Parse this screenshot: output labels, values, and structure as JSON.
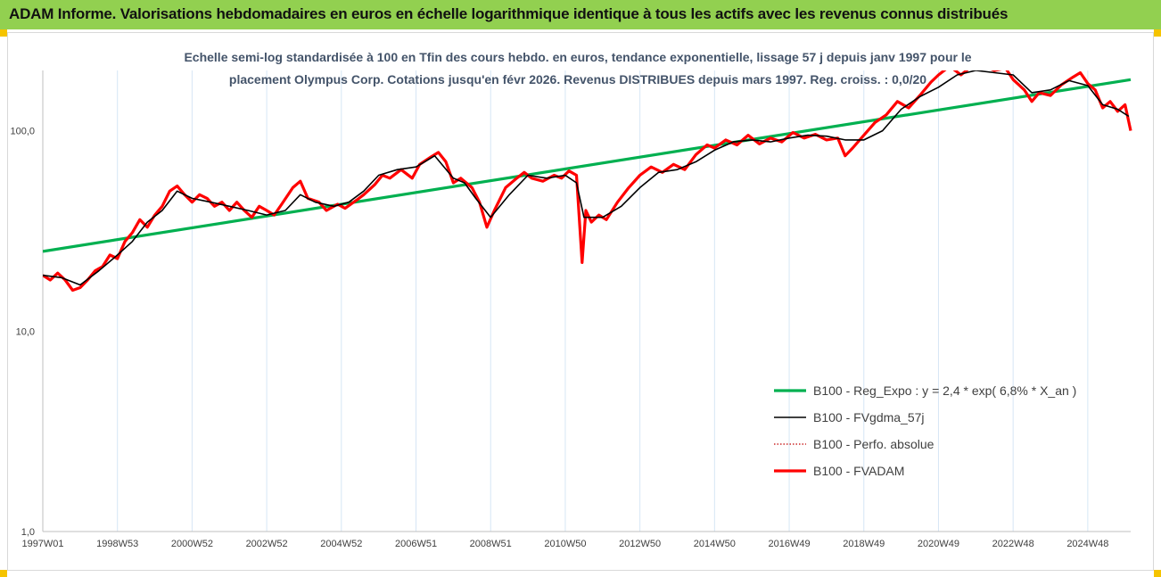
{
  "header": {
    "title": "ADAM Informe. Valorisations hebdomadaires en euros en échelle logarithmique identique à tous les actifs avec les revenus connus distribués",
    "background": "#92d050",
    "corner_color": "#f5c400"
  },
  "chart_data": {
    "type": "line",
    "title_lines": [
      "Echelle semi-log standardisée à 100 en Tfin des cours hebdo. en euros, tendance exponentielle, lissage 57 j depuis janv 1997 pour le",
      "placement Olympus Corp. Cotations jusqu'en févr 2026. Revenus DISTRIBUES depuis mars 1997. Reg. croiss. : 0,0/20"
    ],
    "y_scale": "log",
    "ylim": [
      1,
      200
    ],
    "y_ticks": [
      {
        "value": 1,
        "label": "1,0"
      },
      {
        "value": 10,
        "label": "10,0"
      },
      {
        "value": 100,
        "label": "100,0"
      }
    ],
    "x_range": [
      1997.0,
      2026.15
    ],
    "x_ticks": [
      {
        "x": 1997.0,
        "label": "1997W01"
      },
      {
        "x": 1999.0,
        "label": "1998W53"
      },
      {
        "x": 2001.0,
        "label": "2000W52"
      },
      {
        "x": 2003.0,
        "label": "2002W52"
      },
      {
        "x": 2005.0,
        "label": "2004W52"
      },
      {
        "x": 2007.0,
        "label": "2006W51"
      },
      {
        "x": 2009.0,
        "label": "2008W51"
      },
      {
        "x": 2011.0,
        "label": "2010W50"
      },
      {
        "x": 2013.0,
        "label": "2012W50"
      },
      {
        "x": 2015.0,
        "label": "2014W50"
      },
      {
        "x": 2017.0,
        "label": "2016W49"
      },
      {
        "x": 2019.0,
        "label": "2018W49"
      },
      {
        "x": 2021.0,
        "label": "2020W49"
      },
      {
        "x": 2023.0,
        "label": "2022W48"
      },
      {
        "x": 2025.0,
        "label": "2024W48"
      }
    ],
    "grid": "vertical",
    "legend_position": "bottom-right",
    "series": [
      {
        "name": "B100 - Reg_Expo : y = 2,4 * exp( 6,8% *  X_an )",
        "color": "#00b050",
        "style": "solid-thick",
        "points": [
          [
            1997.0,
            25
          ],
          [
            2026.15,
            180
          ]
        ]
      },
      {
        "name": "B100 - FVgdma_57j",
        "color": "#000000",
        "style": "solid",
        "points": [
          [
            1997.0,
            19
          ],
          [
            1997.5,
            18.5
          ],
          [
            1998.0,
            17
          ],
          [
            1998.5,
            20
          ],
          [
            1999.0,
            24
          ],
          [
            1999.4,
            28
          ],
          [
            1999.8,
            35
          ],
          [
            2000.2,
            40
          ],
          [
            2000.6,
            50
          ],
          [
            2001.0,
            46
          ],
          [
            2001.5,
            44
          ],
          [
            2002.0,
            42
          ],
          [
            2002.5,
            40
          ],
          [
            2003.0,
            38
          ],
          [
            2003.5,
            40
          ],
          [
            2003.9,
            48
          ],
          [
            2004.3,
            44
          ],
          [
            2004.8,
            42
          ],
          [
            2005.2,
            44
          ],
          [
            2005.6,
            50
          ],
          [
            2006.0,
            60
          ],
          [
            2006.5,
            64
          ],
          [
            2007.0,
            66
          ],
          [
            2007.5,
            75
          ],
          [
            2008.0,
            58
          ],
          [
            2008.3,
            55
          ],
          [
            2008.6,
            46
          ],
          [
            2009.0,
            37
          ],
          [
            2009.5,
            48
          ],
          [
            2010.0,
            60
          ],
          [
            2010.5,
            58
          ],
          [
            2011.0,
            60
          ],
          [
            2011.3,
            55
          ],
          [
            2011.5,
            37
          ],
          [
            2012.0,
            37
          ],
          [
            2012.5,
            42
          ],
          [
            2013.0,
            52
          ],
          [
            2013.5,
            62
          ],
          [
            2014.0,
            64
          ],
          [
            2014.5,
            70
          ],
          [
            2015.0,
            80
          ],
          [
            2015.5,
            88
          ],
          [
            2016.0,
            90
          ],
          [
            2016.5,
            88
          ],
          [
            2017.0,
            92
          ],
          [
            2017.5,
            95
          ],
          [
            2018.0,
            94
          ],
          [
            2018.5,
            90
          ],
          [
            2019.0,
            90
          ],
          [
            2019.5,
            100
          ],
          [
            2020.0,
            128
          ],
          [
            2020.5,
            148
          ],
          [
            2021.0,
            165
          ],
          [
            2021.5,
            190
          ],
          [
            2022.0,
            200
          ],
          [
            2023.0,
            190
          ],
          [
            2023.5,
            155
          ],
          [
            2024.0,
            160
          ],
          [
            2024.5,
            178
          ],
          [
            2025.0,
            168
          ],
          [
            2025.4,
            135
          ],
          [
            2025.8,
            128
          ],
          [
            2026.1,
            118
          ]
        ]
      },
      {
        "name": "B100 - Perfo. absolue",
        "color": "#c00000",
        "style": "dotted",
        "points": []
      },
      {
        "name": "B100 - FVADAM",
        "color": "#ff0000",
        "style": "solid-thick",
        "points": [
          [
            1997.0,
            19
          ],
          [
            1997.2,
            18
          ],
          [
            1997.4,
            19.5
          ],
          [
            1997.6,
            18
          ],
          [
            1997.8,
            16
          ],
          [
            1998.0,
            16.5
          ],
          [
            1998.2,
            18
          ],
          [
            1998.4,
            20
          ],
          [
            1998.6,
            21
          ],
          [
            1998.8,
            24
          ],
          [
            1999.0,
            23
          ],
          [
            1999.2,
            28
          ],
          [
            1999.4,
            31
          ],
          [
            1999.6,
            36
          ],
          [
            1999.8,
            33
          ],
          [
            2000.0,
            38
          ],
          [
            2000.2,
            42
          ],
          [
            2000.4,
            50
          ],
          [
            2000.6,
            53
          ],
          [
            2000.8,
            48
          ],
          [
            2001.0,
            44
          ],
          [
            2001.2,
            48
          ],
          [
            2001.4,
            46
          ],
          [
            2001.6,
            42
          ],
          [
            2001.8,
            44
          ],
          [
            2002.0,
            40
          ],
          [
            2002.2,
            44
          ],
          [
            2002.4,
            40
          ],
          [
            2002.6,
            37
          ],
          [
            2002.8,
            42
          ],
          [
            2003.0,
            40
          ],
          [
            2003.2,
            38
          ],
          [
            2003.4,
            43
          ],
          [
            2003.7,
            52
          ],
          [
            2003.9,
            56
          ],
          [
            2004.1,
            46
          ],
          [
            2004.4,
            44
          ],
          [
            2004.6,
            40
          ],
          [
            2004.9,
            43
          ],
          [
            2005.1,
            41
          ],
          [
            2005.4,
            45
          ],
          [
            2005.6,
            48
          ],
          [
            2005.9,
            54
          ],
          [
            2006.1,
            60
          ],
          [
            2006.3,
            58
          ],
          [
            2006.6,
            64
          ],
          [
            2006.9,
            58
          ],
          [
            2007.1,
            68
          ],
          [
            2007.4,
            74
          ],
          [
            2007.6,
            78
          ],
          [
            2007.8,
            70
          ],
          [
            2008.0,
            55
          ],
          [
            2008.2,
            58
          ],
          [
            2008.5,
            52
          ],
          [
            2008.7,
            44
          ],
          [
            2008.9,
            33
          ],
          [
            2009.1,
            40
          ],
          [
            2009.4,
            52
          ],
          [
            2009.7,
            58
          ],
          [
            2009.9,
            62
          ],
          [
            2010.1,
            58
          ],
          [
            2010.4,
            56
          ],
          [
            2010.7,
            60
          ],
          [
            2010.9,
            58
          ],
          [
            2011.1,
            63
          ],
          [
            2011.3,
            60
          ],
          [
            2011.45,
            22
          ],
          [
            2011.55,
            40
          ],
          [
            2011.7,
            35
          ],
          [
            2011.9,
            38
          ],
          [
            2012.1,
            36
          ],
          [
            2012.4,
            44
          ],
          [
            2012.7,
            52
          ],
          [
            2013.0,
            60
          ],
          [
            2013.3,
            66
          ],
          [
            2013.6,
            62
          ],
          [
            2013.9,
            68
          ],
          [
            2014.2,
            64
          ],
          [
            2014.5,
            76
          ],
          [
            2014.8,
            85
          ],
          [
            2015.0,
            82
          ],
          [
            2015.3,
            90
          ],
          [
            2015.6,
            85
          ],
          [
            2015.9,
            95
          ],
          [
            2016.2,
            86
          ],
          [
            2016.5,
            92
          ],
          [
            2016.8,
            88
          ],
          [
            2017.1,
            98
          ],
          [
            2017.4,
            92
          ],
          [
            2017.7,
            96
          ],
          [
            2018.0,
            90
          ],
          [
            2018.3,
            92
          ],
          [
            2018.5,
            75
          ],
          [
            2018.7,
            82
          ],
          [
            2019.0,
            95
          ],
          [
            2019.3,
            110
          ],
          [
            2019.6,
            120
          ],
          [
            2019.9,
            140
          ],
          [
            2020.2,
            130
          ],
          [
            2020.5,
            150
          ],
          [
            2020.8,
            175
          ],
          [
            2021.0,
            190
          ],
          [
            2021.3,
            210
          ],
          [
            2021.6,
            190
          ],
          [
            2021.9,
            210
          ],
          [
            2022.2,
            210
          ],
          [
            2022.5,
            200
          ],
          [
            2022.8,
            205
          ],
          [
            2023.0,
            180
          ],
          [
            2023.3,
            160
          ],
          [
            2023.5,
            140
          ],
          [
            2023.7,
            155
          ],
          [
            2024.0,
            150
          ],
          [
            2024.3,
            170
          ],
          [
            2024.6,
            185
          ],
          [
            2024.8,
            195
          ],
          [
            2025.0,
            172
          ],
          [
            2025.2,
            160
          ],
          [
            2025.4,
            130
          ],
          [
            2025.6,
            140
          ],
          [
            2025.8,
            125
          ],
          [
            2026.0,
            135
          ],
          [
            2026.15,
            100
          ]
        ]
      }
    ]
  }
}
